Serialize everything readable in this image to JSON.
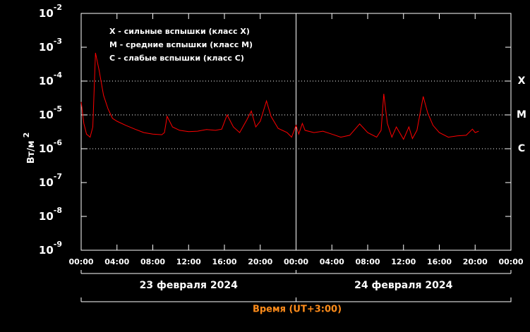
{
  "chart_data": {
    "type": "line",
    "log_y": true,
    "background": "#000000",
    "axis_color": "#ffffff",
    "y_label": "Вт/м",
    "y_label_sup": "2",
    "x_label": "Время (UT+3:00)",
    "x_label_color": "#ff8c1a",
    "legend": [
      "X - сильные вспышки (класс X)",
      "M - средние вспышки (класс M)",
      "C - слабые вспышки (класс C)"
    ],
    "levels": [
      {
        "value": 0.0001,
        "label": "X"
      },
      {
        "value": 1e-05,
        "label": "M"
      },
      {
        "value": 1e-06,
        "label": "C"
      }
    ],
    "dates": [
      "23 февраля 2024",
      "24 февраля 2024"
    ],
    "xlim": [
      0,
      48
    ],
    "ylim": [
      1e-09,
      0.01
    ],
    "xticks": [
      {
        "value": 0,
        "label": "00:00"
      },
      {
        "value": 4,
        "label": "04:00"
      },
      {
        "value": 8,
        "label": "08:00"
      },
      {
        "value": 12,
        "label": "12:00"
      },
      {
        "value": 16,
        "label": "16:00"
      },
      {
        "value": 20,
        "label": "20:00"
      },
      {
        "value": 24,
        "label": "00:00"
      },
      {
        "value": 28,
        "label": "04:00"
      },
      {
        "value": 32,
        "label": "08:00"
      },
      {
        "value": 36,
        "label": "12:00"
      },
      {
        "value": 40,
        "label": "16:00"
      },
      {
        "value": 44,
        "label": "20:00"
      },
      {
        "value": 48,
        "label": "00:00"
      }
    ],
    "yticks": [
      {
        "value": 0.01,
        "label": "10",
        "sup": "-2"
      },
      {
        "value": 0.001,
        "label": "10",
        "sup": "-3"
      },
      {
        "value": 0.0001,
        "label": "10",
        "sup": "-4"
      },
      {
        "value": 1e-05,
        "label": "10",
        "sup": "-5"
      },
      {
        "value": 1e-06,
        "label": "10",
        "sup": "-6"
      },
      {
        "value": 1e-07,
        "label": "10",
        "sup": "-7"
      },
      {
        "value": 1e-08,
        "label": "10",
        "sup": "-8"
      },
      {
        "value": 1e-09,
        "label": "10",
        "sup": "-9"
      }
    ],
    "series": [
      {
        "color": "#ff0000",
        "x": [
          0,
          0.3,
          0.6,
          1,
          1.3,
          1.6,
          2,
          2.5,
          3,
          3.5,
          4,
          5,
          6,
          7,
          8,
          9,
          9.3,
          9.6,
          10.2,
          11,
          12,
          13,
          14,
          15,
          15.7,
          16.3,
          17,
          17.7,
          18.5,
          19,
          19.5,
          20,
          20.7,
          21.2,
          22,
          23,
          23.5,
          24,
          24.3,
          24.7,
          25,
          26,
          27,
          28,
          29,
          30,
          31.1,
          32,
          33,
          33.5,
          33.8,
          34.2,
          34.7,
          35.2,
          36,
          36.6,
          37,
          37.5,
          38.2,
          38.7,
          39.3,
          40,
          41,
          42,
          43,
          43.7,
          44,
          44.4
        ],
        "values": [
          2.4e-05,
          5.6e-06,
          2.7e-06,
          2.2e-06,
          4.4e-06,
          0.00068,
          0.00021,
          3.8e-05,
          1.5e-05,
          7.9e-06,
          6.5e-06,
          4.9e-06,
          3.8e-06,
          3e-06,
          2.7e-06,
          2.6e-06,
          3e-06,
          9.1e-06,
          4.4e-06,
          3.5e-06,
          3.2e-06,
          3.3e-06,
          3.7e-06,
          3.5e-06,
          3.8e-06,
          1e-05,
          4.4e-06,
          3e-06,
          7.1e-06,
          1.3e-05,
          4.4e-06,
          6.5e-06,
          2.6e-05,
          9.1e-06,
          4e-06,
          3e-06,
          2.2e-06,
          4.9e-06,
          2.7e-06,
          5.6e-06,
          3.5e-06,
          3e-06,
          3.3e-06,
          2.7e-06,
          2.2e-06,
          2.5e-06,
          5.4e-06,
          3e-06,
          2.2e-06,
          3.5e-06,
          4.2e-05,
          5.6e-06,
          2.2e-06,
          4.4e-06,
          1.9e-06,
          4.4e-06,
          2e-06,
          3.5e-06,
          3.5e-05,
          1.15e-05,
          4.9e-06,
          3e-06,
          2.2e-06,
          2.4e-06,
          2.5e-06,
          3.8e-06,
          3e-06,
          3.3e-06
        ]
      }
    ]
  }
}
